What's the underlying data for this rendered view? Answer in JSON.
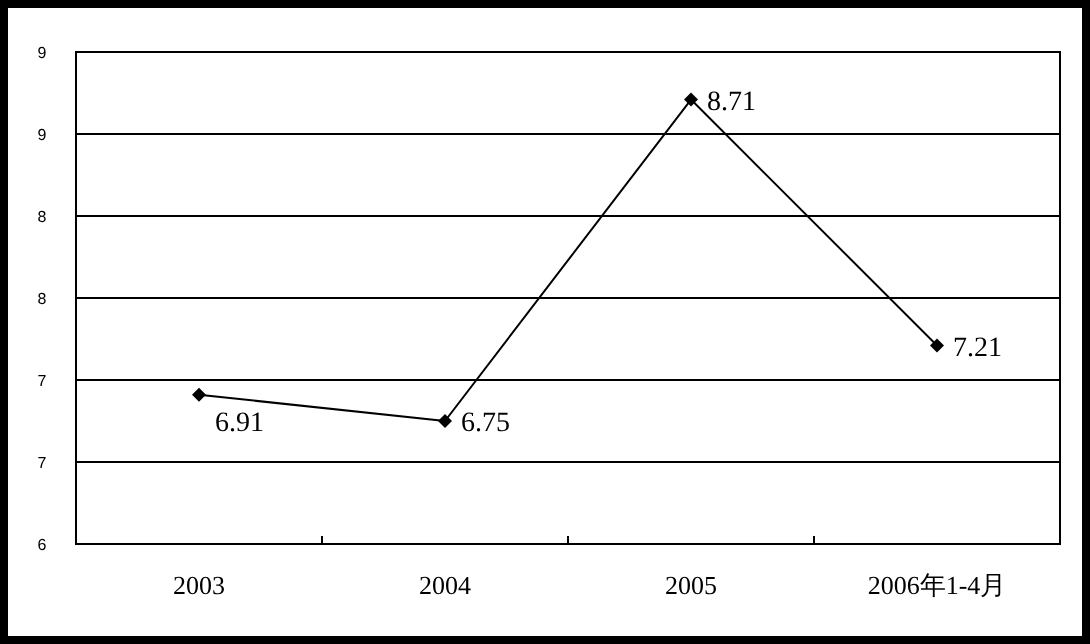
{
  "chart_data": {
    "type": "line",
    "categories": [
      "2003",
      "2004",
      "2005",
      "2006年1-4月"
    ],
    "series": [
      {
        "color": "#000000",
        "values": [
          6.91,
          6.75,
          8.71,
          7.21
        ]
      }
    ],
    "ylim": [
      6,
      9
    ],
    "yticks": [
      6,
      {
        "value": 6.5,
        "label": "7"
      },
      7,
      {
        "value": 7.5,
        "label": "8"
      },
      8,
      {
        "value": 8.5,
        "label": "9"
      },
      9
    ],
    "grid": "y",
    "marker": "diamond",
    "line_style": "solid",
    "data_labels": true
  }
}
